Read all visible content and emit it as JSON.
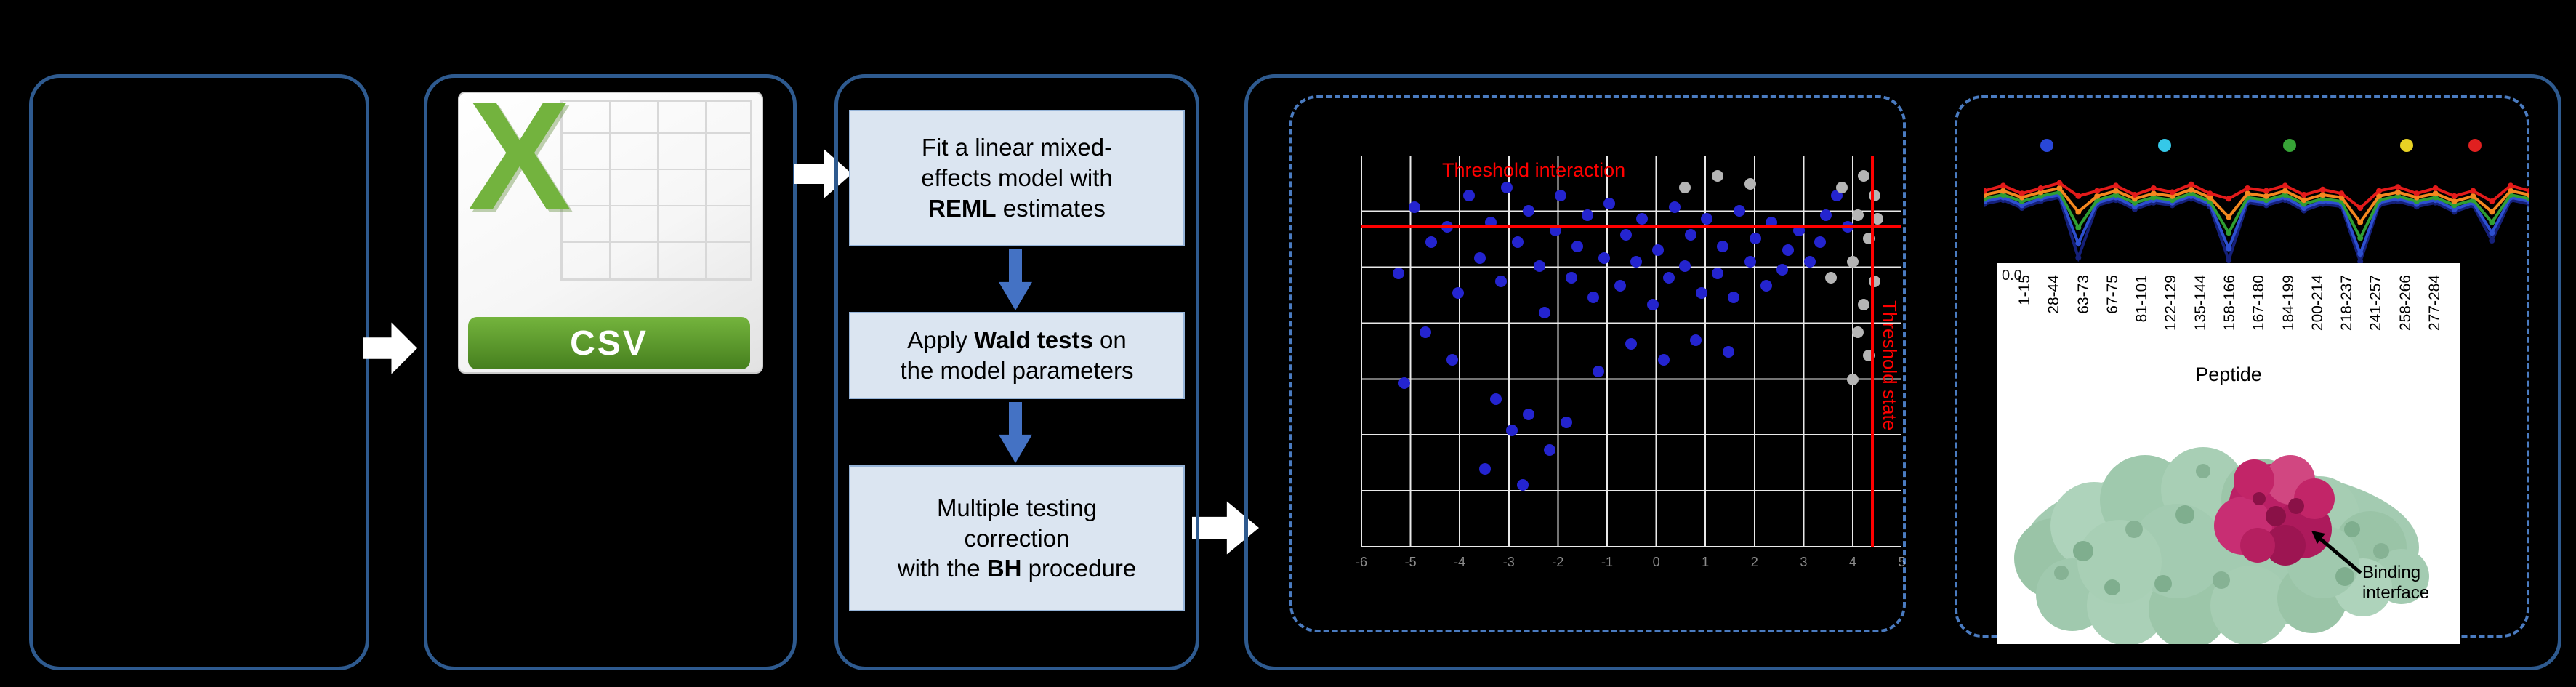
{
  "colors": {
    "background": "#000000",
    "panel_border": "#2e5a8f",
    "dashed_border": "#4a7bc0",
    "step_fill": "#dbe5f1",
    "step_border": "#95b3d7",
    "flow_arrow_blue": "#4472c4",
    "flow_arrow_white": "#ffffff",
    "threshold_red": "#ff0000",
    "grid_line": "#e9e9e9",
    "dot_blue": "#2424cf",
    "dot_gray": "#b5b5b5",
    "csv_green": "#73b33e",
    "protein_surface": "#a3cbb1",
    "protein_interface": "#bb2066"
  },
  "csv_icon": {
    "x_letter": "X",
    "banner_label": "CSV"
  },
  "model_steps": [
    {
      "pre": "Fit a linear mixed-\neffects model with\n",
      "bold": "REML",
      "post": " estimates"
    },
    {
      "pre": "Apply ",
      "bold": "Wald tests",
      "post": " on\nthe model parameters"
    },
    {
      "pre": "Multiple testing\ncorrection\nwith the ",
      "bold": "BH",
      "post": " procedure"
    }
  ],
  "scatter": {
    "type": "scatter",
    "threshold_interaction_label": "Threshold interaction",
    "threshold_state_label": "Threshold state",
    "x_ticks": [
      "-6",
      "-5",
      "-4",
      "-3",
      "-2",
      "-1",
      "0",
      "1",
      "2",
      "3",
      "4",
      "5"
    ],
    "points_blue": [
      [
        0.07,
        0.3
      ],
      [
        0.1,
        0.13
      ],
      [
        0.13,
        0.22
      ],
      [
        0.16,
        0.18
      ],
      [
        0.18,
        0.35
      ],
      [
        0.2,
        0.1
      ],
      [
        0.22,
        0.26
      ],
      [
        0.24,
        0.17
      ],
      [
        0.26,
        0.32
      ],
      [
        0.27,
        0.08
      ],
      [
        0.29,
        0.22
      ],
      [
        0.31,
        0.14
      ],
      [
        0.33,
        0.28
      ],
      [
        0.34,
        0.4
      ],
      [
        0.36,
        0.19
      ],
      [
        0.37,
        0.1
      ],
      [
        0.39,
        0.31
      ],
      [
        0.4,
        0.23
      ],
      [
        0.42,
        0.15
      ],
      [
        0.43,
        0.36
      ],
      [
        0.45,
        0.26
      ],
      [
        0.46,
        0.12
      ],
      [
        0.48,
        0.33
      ],
      [
        0.49,
        0.2
      ],
      [
        0.51,
        0.27
      ],
      [
        0.52,
        0.16
      ],
      [
        0.54,
        0.38
      ],
      [
        0.55,
        0.24
      ],
      [
        0.57,
        0.31
      ],
      [
        0.58,
        0.13
      ],
      [
        0.6,
        0.28
      ],
      [
        0.61,
        0.2
      ],
      [
        0.63,
        0.35
      ],
      [
        0.64,
        0.16
      ],
      [
        0.66,
        0.3
      ],
      [
        0.67,
        0.23
      ],
      [
        0.69,
        0.36
      ],
      [
        0.7,
        0.14
      ],
      [
        0.72,
        0.27
      ],
      [
        0.73,
        0.21
      ],
      [
        0.75,
        0.33
      ],
      [
        0.76,
        0.17
      ],
      [
        0.78,
        0.29
      ],
      [
        0.79,
        0.24
      ],
      [
        0.81,
        0.19
      ],
      [
        0.83,
        0.27
      ],
      [
        0.85,
        0.22
      ],
      [
        0.25,
        0.62
      ],
      [
        0.28,
        0.7
      ],
      [
        0.31,
        0.66
      ],
      [
        0.35,
        0.75
      ],
      [
        0.38,
        0.68
      ],
      [
        0.23,
        0.8
      ],
      [
        0.3,
        0.84
      ],
      [
        0.44,
        0.55
      ],
      [
        0.5,
        0.48
      ],
      [
        0.56,
        0.52
      ],
      [
        0.62,
        0.47
      ],
      [
        0.68,
        0.5
      ],
      [
        0.12,
        0.45
      ],
      [
        0.17,
        0.52
      ],
      [
        0.08,
        0.58
      ],
      [
        0.86,
        0.15
      ],
      [
        0.88,
        0.1
      ],
      [
        0.9,
        0.18
      ]
    ],
    "points_gray": [
      [
        0.93,
        0.05
      ],
      [
        0.95,
        0.1
      ],
      [
        0.92,
        0.15
      ],
      [
        0.94,
        0.21
      ],
      [
        0.91,
        0.27
      ],
      [
        0.95,
        0.32
      ],
      [
        0.93,
        0.38
      ],
      [
        0.92,
        0.45
      ],
      [
        0.94,
        0.51
      ],
      [
        0.91,
        0.57
      ],
      [
        0.89,
        0.08
      ],
      [
        0.87,
        0.31
      ],
      [
        0.72,
        0.07
      ],
      [
        0.66,
        0.05
      ],
      [
        0.6,
        0.08
      ],
      [
        0.955,
        0.16
      ]
    ]
  },
  "kinetics": {
    "type": "line",
    "y_tick_zero": "0.0",
    "timepoint_dots": [
      {
        "color": "#2947d8",
        "x": 0.115
      },
      {
        "color": "#35c8e8",
        "x": 0.33
      },
      {
        "color": "#37a437",
        "x": 0.56
      },
      {
        "color": "#e8d224",
        "x": 0.775
      },
      {
        "color": "#e02020",
        "x": 0.9
      }
    ],
    "series": [
      {
        "color": "#15207a",
        "values": [
          0.52,
          0.49,
          0.55,
          0.5,
          0.47,
          0.93,
          0.53,
          0.49,
          0.56,
          0.51,
          0.53,
          0.48,
          0.54,
          0.95,
          0.51,
          0.53,
          0.49,
          0.57,
          0.52,
          0.54,
          0.96,
          0.53,
          0.5,
          0.54,
          0.51,
          0.58,
          0.53,
          0.8,
          0.49,
          0.52
        ]
      },
      {
        "color": "#2d4fd0",
        "values": [
          0.5,
          0.47,
          0.53,
          0.48,
          0.45,
          0.82,
          0.51,
          0.47,
          0.54,
          0.49,
          0.51,
          0.46,
          0.52,
          0.86,
          0.49,
          0.51,
          0.47,
          0.55,
          0.5,
          0.52,
          0.9,
          0.51,
          0.48,
          0.52,
          0.49,
          0.56,
          0.51,
          0.74,
          0.47,
          0.5
        ]
      },
      {
        "color": "#2f9e33",
        "values": [
          0.48,
          0.45,
          0.5,
          0.46,
          0.43,
          0.7,
          0.49,
          0.45,
          0.51,
          0.47,
          0.49,
          0.44,
          0.5,
          0.74,
          0.47,
          0.49,
          0.45,
          0.52,
          0.48,
          0.5,
          0.78,
          0.49,
          0.46,
          0.5,
          0.47,
          0.53,
          0.49,
          0.66,
          0.45,
          0.48
        ]
      },
      {
        "color": "#f5871f",
        "values": [
          0.45,
          0.42,
          0.47,
          0.43,
          0.4,
          0.58,
          0.46,
          0.42,
          0.48,
          0.44,
          0.46,
          0.41,
          0.47,
          0.62,
          0.44,
          0.46,
          0.42,
          0.49,
          0.45,
          0.47,
          0.66,
          0.46,
          0.43,
          0.47,
          0.44,
          0.5,
          0.46,
          0.58,
          0.42,
          0.45
        ]
      },
      {
        "color": "#e31a1a",
        "values": [
          0.42,
          0.38,
          0.44,
          0.4,
          0.36,
          0.46,
          0.42,
          0.38,
          0.45,
          0.4,
          0.43,
          0.37,
          0.44,
          0.48,
          0.4,
          0.42,
          0.38,
          0.45,
          0.41,
          0.44,
          0.55,
          0.42,
          0.39,
          0.44,
          0.4,
          0.46,
          0.42,
          0.5,
          0.38,
          0.42
        ]
      }
    ]
  },
  "peptide_axis": {
    "ticks": [
      "1-15",
      "28-44",
      "63-73",
      "67-75",
      "81-101",
      "122-129",
      "135-144",
      "158-166",
      "167-180",
      "184-199",
      "200-214",
      "218-237",
      "241-257",
      "258-266",
      "277-284"
    ],
    "axis_label": "Peptide"
  },
  "protein": {
    "binding_label": "Binding interface"
  }
}
